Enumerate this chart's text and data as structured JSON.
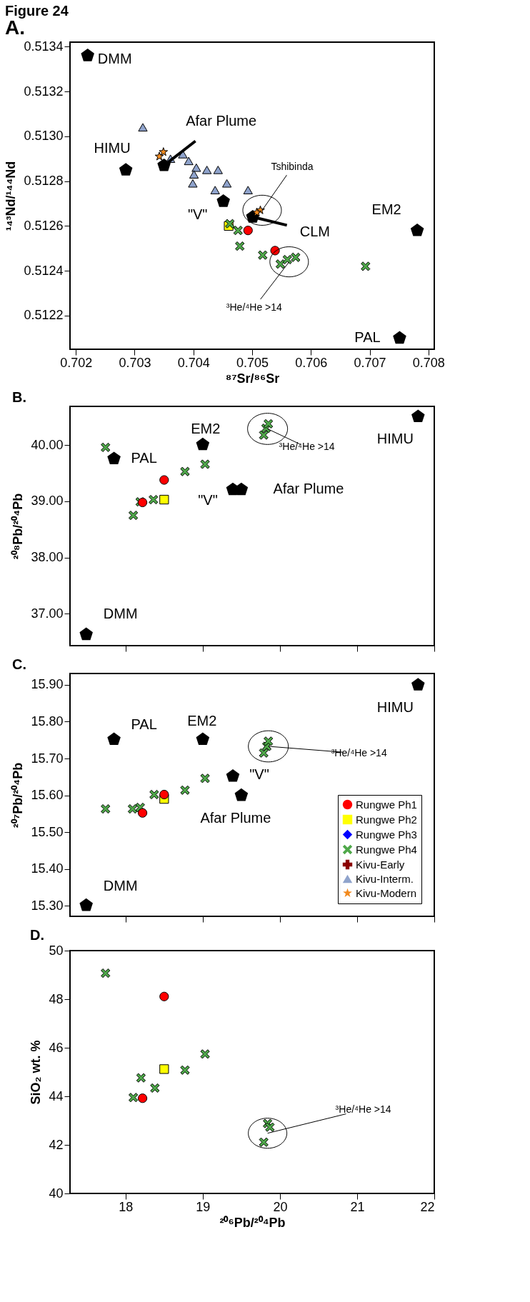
{
  "chart_data": [
    {
      "type": "scatter",
      "title": "Figure 24",
      "subtitle": "A.",
      "xlabel": "⁸⁷Sr/⁸⁶Sr",
      "ylabel": "¹⁴³Nd/¹⁴⁴Nd",
      "xlim": [
        0.7019,
        0.7081
      ],
      "ylim": [
        0.51205,
        0.51342
      ],
      "xticks": [
        0.702,
        0.703,
        0.704,
        0.705,
        0.706,
        0.707,
        0.708
      ],
      "yticks": [
        {
          "value": 0.5122,
          "label": "0.5122"
        },
        0.5124,
        0.5126,
        0.5128,
        {
          "value": 0.513,
          "label": "0.5130"
        },
        0.5132,
        0.5134
      ],
      "grid": false,
      "legend": false,
      "annotations": [
        {
          "text": "DMM",
          "x": 0.7022,
          "y": 0.51336
        },
        {
          "text": "HIMU",
          "x": 0.70285,
          "y": 0.51285
        },
        {
          "text": "Afar Plume",
          "x": 0.7035,
          "y": 0.51287
        },
        {
          "text": "\"V\"",
          "x": 0.70451,
          "y": 0.51271
        },
        {
          "text": "CLM",
          "x": 0.70501,
          "y": 0.51264
        },
        {
          "text": "EM2",
          "x": 0.70781,
          "y": 0.51258
        },
        {
          "text": "PAL",
          "x": 0.70751,
          "y": 0.5121
        },
        {
          "text": "Tshibinda",
          "x": 0.70517,
          "y": 0.51267
        },
        {
          "text": "³He/⁴He >14",
          "x": 0.70563,
          "y": 0.51244
        }
      ],
      "series": [
        {
          "color": "#000000",
          "x": [
            0.7022,
            0.70285,
            0.7035,
            0.70451,
            0.70501,
            0.70781,
            0.70751
          ],
          "values": [
            0.51336,
            0.51285,
            0.51287,
            0.51271,
            0.51264,
            0.51258,
            0.5121
          ]
        },
        {
          "color": "#8fa3cc",
          "marker": "triangle",
          "x": [
            0.70314,
            0.70361,
            0.70382,
            0.70392,
            0.70405,
            0.70401,
            0.70399,
            0.70423,
            0.70442,
            0.70437,
            0.70457,
            0.70493
          ],
          "values": [
            0.51304,
            0.5129,
            0.51292,
            0.51289,
            0.51286,
            0.51283,
            0.51279,
            0.51285,
            0.51285,
            0.51276,
            0.51279,
            0.51276
          ]
        },
        {
          "color": "#f28a1e",
          "marker": "star",
          "x": [
            0.70349,
            0.70342,
            0.70514,
            0.70508
          ],
          "values": [
            0.51293,
            0.51291,
            0.51267,
            0.51266
          ]
        },
        {
          "color": "#ffff00",
          "marker": "square",
          "x": [
            0.7046
          ],
          "values": [
            0.5126
          ]
        },
        {
          "color": "#4fa84a",
          "marker": "cross",
          "x": [
            0.70462,
            0.70476,
            0.70479,
            0.70518,
            0.70548,
            0.7056,
            0.70574,
            0.70693
          ],
          "values": [
            0.51261,
            0.51258,
            0.51251,
            0.51247,
            0.51243,
            0.51245,
            0.51246,
            0.51242
          ]
        },
        {
          "color": "#ff0000",
          "marker": "circle",
          "x": [
            0.70493,
            0.70539
          ],
          "values": [
            0.51258,
            0.51249
          ]
        }
      ]
    },
    {
      "type": "scatter",
      "title": "B.",
      "ylabel": "²⁰⁸Pb/²⁰⁴Pb",
      "xlim": [
        17.28,
        22
      ],
      "ylim": [
        36.43,
        40.69
      ],
      "xticks": [
        18,
        19,
        20,
        21,
        22
      ],
      "yticks": [
        {
          "value": 37,
          "label": "37.00"
        },
        {
          "value": 38,
          "label": "38.00"
        },
        {
          "value": 39,
          "label": "39.00"
        },
        {
          "value": 40,
          "label": "40.00"
        }
      ],
      "tick_labels": "y",
      "grid": false,
      "legend": false,
      "annotations": [
        {
          "text": "DMM",
          "x": 17.49,
          "y": 36.63
        },
        {
          "text": "PAL",
          "x": 17.85,
          "y": 39.76
        },
        {
          "text": "EM2",
          "x": 19.0,
          "y": 40.01
        },
        {
          "text": "HIMU",
          "x": 21.79,
          "y": 40.51
        },
        {
          "text": "\"V\"",
          "x": 19.39,
          "y": 39.21
        },
        {
          "text": "Afar Plume",
          "x": 19.5,
          "y": 39.21
        },
        {
          "text": "³He/⁴He >14",
          "x": 19.84,
          "y": 40.29
        }
      ],
      "series": [
        {
          "color": "#000000",
          "x": [
            17.49,
            17.85,
            19.0,
            21.79,
            19.39,
            19.5
          ],
          "values": [
            36.63,
            39.76,
            40.01,
            40.51,
            39.21,
            39.21
          ]
        },
        {
          "color": "#4fa84a",
          "marker": "cross",
          "x": [
            17.74,
            18.1,
            18.19,
            18.36,
            18.77,
            19.03,
            19.79,
            19.82,
            19.85
          ],
          "values": [
            39.96,
            38.75,
            38.99,
            39.03,
            39.53,
            39.66,
            40.18,
            40.3,
            40.38
          ]
        },
        {
          "color": "#ffff00",
          "marker": "square",
          "x": [
            18.5
          ],
          "values": [
            39.03
          ]
        },
        {
          "color": "#ff0000",
          "marker": "circle",
          "x": [
            18.5,
            18.22
          ],
          "values": [
            39.38,
            38.98
          ]
        }
      ]
    },
    {
      "type": "scatter",
      "title": "C.",
      "ylabel": "²⁰⁷Pb/²⁰⁴Pb",
      "xlim": [
        17.28,
        22
      ],
      "ylim": [
        15.271,
        15.931
      ],
      "xticks": [
        18,
        19,
        20,
        21,
        22
      ],
      "yticks": [
        {
          "value": 15.3,
          "label": "15.30"
        },
        {
          "value": 15.4,
          "label": "15.40"
        },
        {
          "value": 15.5,
          "label": "15.50"
        },
        {
          "value": 15.6,
          "label": "15.60"
        },
        {
          "value": 15.7,
          "label": "15.70"
        },
        {
          "value": 15.8,
          "label": "15.80"
        },
        {
          "value": 15.9,
          "label": "15.90"
        }
      ],
      "tick_labels": "y",
      "grid": false,
      "legend": "bottom right",
      "annotations": [
        {
          "text": "DMM",
          "x": 17.49,
          "y": 15.301
        },
        {
          "text": "PAL",
          "x": 17.85,
          "y": 15.752
        },
        {
          "text": "EM2",
          "x": 19.0,
          "y": 15.752
        },
        {
          "text": "HIMU",
          "x": 21.79,
          "y": 15.9
        },
        {
          "text": "\"V\"",
          "x": 19.39,
          "y": 15.652
        },
        {
          "text": "Afar Plume",
          "x": 19.5,
          "y": 15.6
        },
        {
          "text": "³He/⁴He >14",
          "x": 19.85,
          "y": 15.733
        }
      ],
      "series": [
        {
          "color": "#000000",
          "x": [
            17.49,
            17.85,
            19.0,
            21.79,
            19.39,
            19.5
          ],
          "values": [
            15.301,
            15.752,
            15.752,
            15.9,
            15.652,
            15.6
          ]
        },
        {
          "name": "Rungwe Ph1",
          "color": "#ff0000",
          "marker": "circle",
          "x": [
            18.5,
            18.22
          ],
          "values": [
            15.602,
            15.552
          ]
        },
        {
          "name": "Rungwe Ph2",
          "color": "#ffff00",
          "marker": "square",
          "x": [
            18.5
          ],
          "values": [
            15.59
          ]
        },
        {
          "name": "Rungwe Ph3",
          "color": "#0000ff",
          "marker": "diamond"
        },
        {
          "name": "Rungwe Ph4",
          "color": "#4fa84a",
          "marker": "cross",
          "x": [
            17.74,
            18.09,
            18.19,
            18.37,
            18.77,
            19.03,
            19.79,
            19.83,
            19.85
          ],
          "values": [
            15.563,
            15.563,
            15.567,
            15.602,
            15.614,
            15.646,
            15.715,
            15.733,
            15.747
          ]
        },
        {
          "name": "Kivu-Early",
          "color": "#8b0000",
          "marker": "plus"
        },
        {
          "name": "Kivu-Interm.",
          "color": "#8fa3cc",
          "marker": "triangle"
        },
        {
          "name": "Kivu-Modern",
          "color": "#f28a1e",
          "marker": "star"
        }
      ]
    },
    {
      "type": "scatter",
      "title": "D.",
      "xlabel": "²⁰⁶Pb/²⁰⁴Pb",
      "ylabel": "SiO₂ wt. %",
      "xlim": [
        17.28,
        22
      ],
      "ylim": [
        40,
        50
      ],
      "xticks": [
        18,
        19,
        20,
        21,
        22
      ],
      "yticks": [
        40,
        42,
        44,
        46,
        48,
        50
      ],
      "grid": false,
      "legend": false,
      "annotations": [
        {
          "text": "³He/⁴He >14",
          "x": 19.84,
          "y": 42.48
        }
      ],
      "series": [
        {
          "color": "#4fa84a",
          "marker": "cross",
          "x": [
            17.74,
            18.2,
            18.38,
            18.1,
            18.77,
            19.03,
            19.84,
            19.87,
            19.79
          ],
          "values": [
            49.07,
            44.76,
            44.34,
            43.95,
            45.08,
            45.74,
            42.88,
            42.73,
            42.11
          ]
        },
        {
          "color": "#ffff00",
          "marker": "square",
          "x": [
            18.5
          ],
          "values": [
            45.12
          ]
        },
        {
          "color": "#ff0000",
          "marker": "circle",
          "x": [
            18.5,
            18.22
          ],
          "values": [
            48.11,
            43.92
          ]
        }
      ]
    }
  ]
}
